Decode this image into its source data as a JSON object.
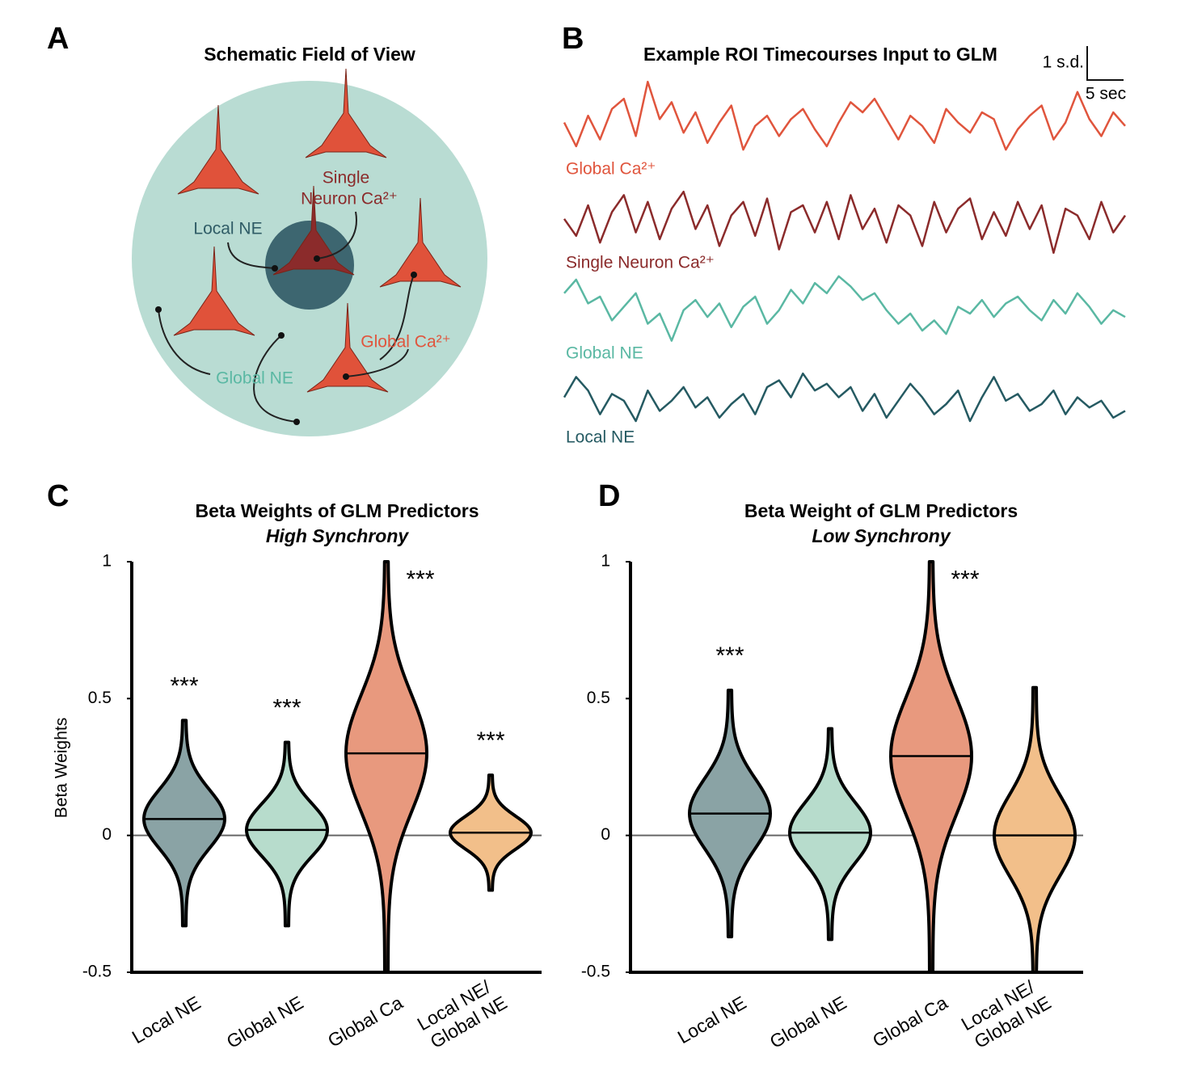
{
  "panels": [
    "A",
    "B",
    "C",
    "D"
  ],
  "diagram": {
    "title": "Schematic Field of View",
    "labels": {
      "local_ne": "Local NE",
      "single_line1": "Single",
      "single_line2": "Neuron Ca²⁺",
      "global_ca": "Global Ca²⁺",
      "global_ne": "Global NE"
    }
  },
  "chart_data": [
    {
      "type": "line",
      "title": "Example ROI Timecourses Input to GLM",
      "scalebar": {
        "y_label": "1 s.d.",
        "x_label": "5 sec"
      },
      "series": [
        {
          "name": "Global Ca²⁺",
          "color": "#e0553d",
          "values": [
            0.2,
            -0.5,
            0.4,
            -0.3,
            0.6,
            0.9,
            -0.2,
            1.4,
            0.3,
            0.8,
            -0.1,
            0.5,
            -0.4,
            0.2,
            0.7,
            -0.6,
            0.1,
            0.4,
            -0.2,
            0.3,
            0.6,
            0.0,
            -0.5,
            0.2,
            0.8,
            0.5,
            0.9,
            0.3,
            -0.3,
            0.4,
            0.1,
            -0.4,
            0.6,
            0.2,
            -0.1,
            0.5,
            0.3,
            -0.6,
            0.0,
            0.4,
            0.7,
            -0.3,
            0.2,
            1.1,
            0.3,
            -0.2,
            0.5,
            0.1
          ]
        },
        {
          "name": "Single Neuron Ca²⁺",
          "color": "#8b2b2b",
          "values": [
            0.1,
            -0.4,
            0.5,
            -0.6,
            0.3,
            0.8,
            -0.3,
            0.6,
            -0.5,
            0.4,
            0.9,
            -0.2,
            0.5,
            -0.7,
            0.2,
            0.6,
            -0.4,
            0.7,
            -0.8,
            0.3,
            0.5,
            -0.3,
            0.6,
            -0.5,
            0.8,
            -0.2,
            0.4,
            -0.6,
            0.5,
            0.2,
            -0.7,
            0.6,
            -0.3,
            0.4,
            0.7,
            -0.5,
            0.3,
            -0.4,
            0.6,
            -0.2,
            0.5,
            -0.9,
            0.4,
            0.2,
            -0.5,
            0.6,
            -0.3,
            0.2
          ]
        },
        {
          "name": "Global NE",
          "color": "#5ab8a3",
          "values": [
            0.6,
            1.0,
            0.3,
            0.5,
            -0.2,
            0.2,
            0.6,
            -0.3,
            0.0,
            -0.8,
            0.1,
            0.4,
            -0.1,
            0.3,
            -0.4,
            0.2,
            0.5,
            -0.3,
            0.1,
            0.7,
            0.3,
            0.9,
            0.6,
            1.1,
            0.8,
            0.4,
            0.6,
            0.1,
            -0.3,
            0.0,
            -0.5,
            -0.2,
            -0.6,
            0.2,
            0.0,
            0.4,
            -0.1,
            0.3,
            0.5,
            0.1,
            -0.2,
            0.4,
            0.0,
            0.6,
            0.2,
            -0.3,
            0.1,
            -0.1
          ]
        },
        {
          "name": "Local NE",
          "color": "#255a62",
          "values": [
            0.2,
            0.8,
            0.4,
            -0.3,
            0.3,
            0.1,
            -0.5,
            0.4,
            -0.2,
            0.1,
            0.5,
            -0.1,
            0.2,
            -0.4,
            0.0,
            0.3,
            -0.3,
            0.5,
            0.7,
            0.2,
            0.9,
            0.4,
            0.6,
            0.2,
            0.5,
            -0.2,
            0.3,
            -0.4,
            0.1,
            0.6,
            0.2,
            -0.3,
            0.0,
            0.4,
            -0.5,
            0.2,
            0.8,
            0.1,
            0.3,
            -0.2,
            0.0,
            0.4,
            -0.3,
            0.2,
            -0.1,
            0.1,
            -0.4,
            -0.2
          ]
        }
      ]
    },
    {
      "type": "violin",
      "title": "Beta Weights of GLM Predictors",
      "subtitle": "High Synchrony",
      "ylabel": "Beta Weights",
      "categories": [
        [
          "Local NE"
        ],
        [
          "Global NE"
        ],
        [
          "Global Ca"
        ],
        [
          "Local NE/",
          "Global NE"
        ]
      ],
      "colors": [
        "#8aa3a5",
        "#b7dccc",
        "#e8997e",
        "#f2bf8a"
      ],
      "min": [
        -0.33,
        -0.33,
        -0.5,
        -0.2
      ],
      "max": [
        0.42,
        0.34,
        1.0,
        0.22
      ],
      "median": [
        0.06,
        0.02,
        0.3,
        0.01
      ],
      "annotations": [
        "***",
        "***",
        "***",
        "***"
      ],
      "ylim": [
        -0.5,
        1
      ],
      "yticks": [
        {
          "value": -0.5,
          "label": "-0.5"
        },
        0,
        0.5,
        1
      ],
      "zero_line": true
    },
    {
      "type": "violin",
      "title": "Beta Weight of GLM Predictors",
      "subtitle": "Low Synchrony",
      "categories": [
        [
          "Local NE"
        ],
        [
          "Global NE"
        ],
        [
          "Global Ca"
        ],
        [
          "Local NE/",
          "Global NE"
        ]
      ],
      "colors": [
        "#8aa3a5",
        "#b7dccc",
        "#e8997e",
        "#f2bf8a"
      ],
      "min": [
        -0.37,
        -0.38,
        -0.5,
        -0.5
      ],
      "max": [
        0.53,
        0.39,
        1.0,
        0.54
      ],
      "median": [
        0.08,
        0.01,
        0.29,
        0.0
      ],
      "annotations": [
        "***",
        null,
        "***",
        null
      ],
      "ylim": [
        -0.5,
        1
      ],
      "yticks": [
        {
          "value": -0.5,
          "label": "-0.5"
        },
        0,
        0.5,
        1
      ],
      "zero_line": true
    }
  ]
}
